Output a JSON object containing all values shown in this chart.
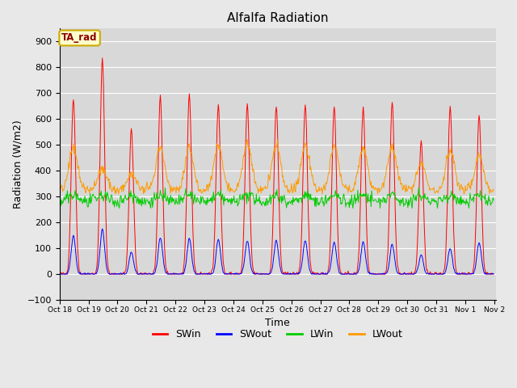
{
  "title": "Alfalfa Radiation",
  "xlabel": "Time",
  "ylabel": "Radiation (W/m2)",
  "ylim": [
    -100,
    950
  ],
  "yticks": [
    -100,
    0,
    100,
    200,
    300,
    400,
    500,
    600,
    700,
    800,
    900
  ],
  "xtick_labels": [
    "Oct 18",
    "Oct 19",
    "Oct 20",
    "Oct 21",
    "Oct 22",
    "Oct 23",
    "Oct 24",
    "Oct 25",
    "Oct 26",
    "Oct 27",
    "Oct 28",
    "Oct 29",
    "Oct 30",
    "Oct 31",
    "Nov 1",
    "Nov 2"
  ],
  "legend_entries": [
    "SWin",
    "SWout",
    "LWin",
    "LWout"
  ],
  "line_colors": [
    "#ff0000",
    "#0000ff",
    "#00cc00",
    "#ff9900"
  ],
  "bg_color": "#e8e8e8",
  "plot_bg_color": "#d8d8d8",
  "annotation_text": "TA_rad",
  "annotation_bg": "#ffffcc",
  "annotation_border": "#ccaa00",
  "day_peaks_SWin": [
    680,
    830,
    560,
    685,
    695,
    660,
    655,
    650,
    655,
    650,
    645,
    665,
    515,
    650,
    615
  ],
  "day_peaks_SWout": [
    150,
    175,
    85,
    140,
    140,
    135,
    130,
    130,
    130,
    125,
    125,
    115,
    75,
    100,
    120
  ],
  "lw_peaks": [
    490,
    410,
    390,
    490,
    490,
    500,
    505,
    500,
    500,
    495,
    490,
    490,
    430,
    480,
    460
  ],
  "lwin_base": 280,
  "lwout_base": 325
}
